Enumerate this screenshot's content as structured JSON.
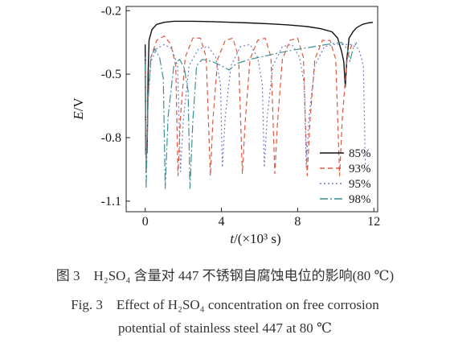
{
  "chart_data": {
    "type": "line",
    "xlabel_italic": "t",
    "xlabel_rest": "/(×10³ s)",
    "ylabel_italic": "E",
    "ylabel_rest": "/V",
    "xlim": [
      -1,
      12.2
    ],
    "ylim": [
      -1.15,
      -0.18
    ],
    "x_ticks": [
      0,
      4,
      8,
      12
    ],
    "y_ticks": [
      -0.2,
      -0.5,
      -0.8,
      -1.1
    ],
    "x_tick_labels": [
      "0",
      "4",
      "8",
      "12"
    ],
    "y_tick_labels": [
      "-0.2",
      "-0.5",
      "-0.8",
      "-1.1"
    ],
    "grid": false,
    "legend_position": "lower-right",
    "series": [
      {
        "name": "85%",
        "color": "#111111",
        "dash": "solid",
        "points": [
          [
            0.0,
            -0.36
          ],
          [
            0.03,
            -0.88
          ],
          [
            0.1,
            -0.87
          ],
          [
            0.15,
            -0.5
          ],
          [
            0.2,
            -0.34
          ],
          [
            0.35,
            -0.29
          ],
          [
            0.6,
            -0.265
          ],
          [
            1.0,
            -0.255
          ],
          [
            1.5,
            -0.25
          ],
          [
            2.5,
            -0.25
          ],
          [
            3.5,
            -0.252
          ],
          [
            4.5,
            -0.255
          ],
          [
            5.5,
            -0.258
          ],
          [
            6.5,
            -0.262
          ],
          [
            7.5,
            -0.267
          ],
          [
            8.5,
            -0.275
          ],
          [
            9.2,
            -0.285
          ],
          [
            9.8,
            -0.3
          ],
          [
            10.1,
            -0.33
          ],
          [
            10.3,
            -0.39
          ],
          [
            10.42,
            -0.44
          ],
          [
            10.5,
            -0.56
          ],
          [
            10.58,
            -0.43
          ],
          [
            10.7,
            -0.33
          ],
          [
            10.9,
            -0.3
          ],
          [
            11.1,
            -0.28
          ],
          [
            11.4,
            -0.265
          ],
          [
            11.7,
            -0.258
          ],
          [
            11.95,
            -0.255
          ]
        ]
      },
      {
        "name": "93%",
        "color": "#e0563f",
        "dash": "6,4",
        "points": [
          [
            0.0,
            -0.45
          ],
          [
            0.05,
            -0.97
          ],
          [
            0.15,
            -0.6
          ],
          [
            0.3,
            -0.42
          ],
          [
            0.6,
            -0.34
          ],
          [
            1.0,
            -0.32
          ],
          [
            1.35,
            -0.36
          ],
          [
            1.6,
            -0.46
          ],
          [
            1.72,
            -0.98
          ],
          [
            1.85,
            -0.7
          ],
          [
            2.1,
            -0.42
          ],
          [
            2.5,
            -0.33
          ],
          [
            2.9,
            -0.33
          ],
          [
            3.2,
            -0.42
          ],
          [
            3.42,
            -0.98
          ],
          [
            3.55,
            -0.72
          ],
          [
            3.8,
            -0.43
          ],
          [
            4.2,
            -0.34
          ],
          [
            4.6,
            -0.33
          ],
          [
            4.9,
            -0.42
          ],
          [
            5.1,
            -0.97
          ],
          [
            5.25,
            -0.72
          ],
          [
            5.5,
            -0.43
          ],
          [
            5.9,
            -0.34
          ],
          [
            6.3,
            -0.33
          ],
          [
            6.6,
            -0.42
          ],
          [
            6.8,
            -0.97
          ],
          [
            6.95,
            -0.72
          ],
          [
            7.2,
            -0.43
          ],
          [
            7.6,
            -0.34
          ],
          [
            8.0,
            -0.33
          ],
          [
            8.3,
            -0.42
          ],
          [
            8.5,
            -0.98
          ],
          [
            8.65,
            -0.72
          ],
          [
            8.9,
            -0.43
          ],
          [
            9.3,
            -0.34
          ],
          [
            9.7,
            -0.34
          ],
          [
            10.0,
            -0.43
          ],
          [
            10.2,
            -0.98
          ],
          [
            10.35,
            -0.7
          ],
          [
            10.6,
            -0.42
          ],
          [
            10.85,
            -0.36
          ],
          [
            11.0,
            -0.35
          ]
        ]
      },
      {
        "name": "95%",
        "color": "#6e7dc8",
        "dash": "2,3",
        "points": [
          [
            0.0,
            -0.42
          ],
          [
            0.05,
            -0.95
          ],
          [
            0.15,
            -0.62
          ],
          [
            0.3,
            -0.44
          ],
          [
            0.6,
            -0.38
          ],
          [
            1.0,
            -0.36
          ],
          [
            1.4,
            -0.38
          ],
          [
            1.7,
            -0.46
          ],
          [
            1.85,
            -0.96
          ],
          [
            2.0,
            -0.72
          ],
          [
            2.3,
            -0.46
          ],
          [
            2.8,
            -0.38
          ],
          [
            3.3,
            -0.37
          ],
          [
            3.7,
            -0.42
          ],
          [
            3.95,
            -0.55
          ],
          [
            4.05,
            -0.94
          ],
          [
            4.2,
            -0.7
          ],
          [
            4.5,
            -0.46
          ],
          [
            5.0,
            -0.37
          ],
          [
            5.5,
            -0.36
          ],
          [
            5.9,
            -0.42
          ],
          [
            6.15,
            -0.55
          ],
          [
            6.25,
            -0.94
          ],
          [
            6.4,
            -0.7
          ],
          [
            6.7,
            -0.46
          ],
          [
            7.2,
            -0.37
          ],
          [
            7.7,
            -0.36
          ],
          [
            8.1,
            -0.42
          ],
          [
            8.35,
            -0.55
          ],
          [
            8.45,
            -0.94
          ],
          [
            8.6,
            -0.7
          ],
          [
            8.9,
            -0.46
          ],
          [
            9.4,
            -0.37
          ],
          [
            9.9,
            -0.36
          ],
          [
            10.4,
            -0.36
          ],
          [
            10.8,
            -0.36
          ],
          [
            11.2,
            -0.38
          ],
          [
            11.45,
            -0.46
          ],
          [
            11.55,
            -0.93
          ]
        ]
      },
      {
        "name": "98%",
        "color": "#3f8f92",
        "dash": "10,3,2,3",
        "points": [
          [
            0.0,
            -0.45
          ],
          [
            0.05,
            -1.04
          ],
          [
            0.15,
            -0.62
          ],
          [
            0.3,
            -0.42
          ],
          [
            0.5,
            -0.38
          ],
          [
            0.75,
            -0.42
          ],
          [
            0.95,
            -0.52
          ],
          [
            1.05,
            -1.04
          ],
          [
            1.2,
            -0.7
          ],
          [
            1.5,
            -0.46
          ],
          [
            1.8,
            -0.43
          ],
          [
            2.05,
            -0.47
          ],
          [
            2.25,
            -0.58
          ],
          [
            2.35,
            -1.04
          ],
          [
            2.5,
            -0.72
          ],
          [
            2.7,
            -0.46
          ],
          [
            3.0,
            -0.43
          ],
          [
            3.5,
            -0.44
          ],
          [
            4.0,
            -0.46
          ],
          [
            4.4,
            -0.48
          ],
          [
            4.8,
            -0.45
          ],
          [
            5.5,
            -0.43
          ],
          [
            6.5,
            -0.41
          ],
          [
            7.5,
            -0.39
          ],
          [
            8.5,
            -0.375
          ],
          [
            9.5,
            -0.36
          ],
          [
            10.3,
            -0.35
          ],
          [
            10.6,
            -0.38
          ],
          [
            10.75,
            -0.44
          ],
          [
            10.9,
            -0.38
          ],
          [
            11.1,
            -0.35
          ]
        ]
      }
    ]
  },
  "caption": {
    "cn": "图 3　H₂SO₄ 含量对 447 不锈钢自腐蚀电位的影响(80 ℃)",
    "en_line1": "Fig. 3　Effect of H₂SO₄ concentration on free corrosion",
    "en_line2": "potential of stainless steel 447 at 80 ℃"
  }
}
